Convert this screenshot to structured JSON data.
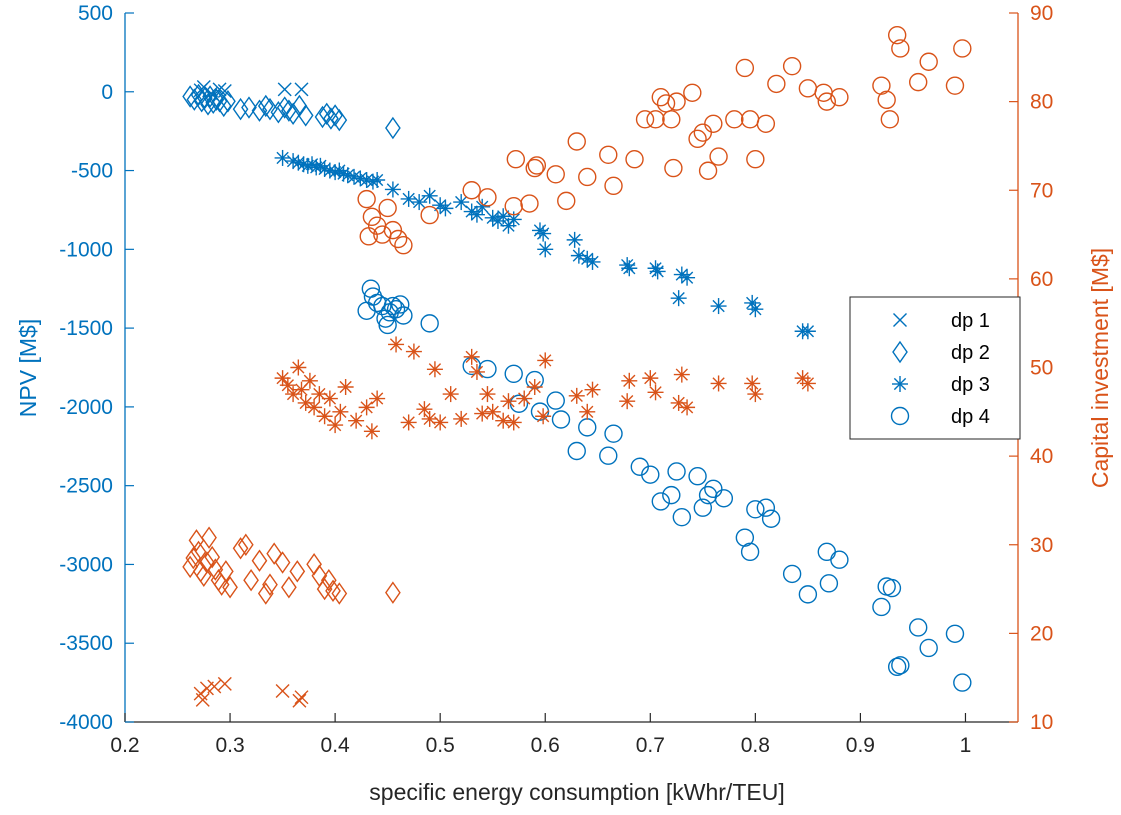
{
  "chart_data": {
    "type": "scatter",
    "title": "",
    "xlabel": "specific energy consumption [kWhr/TEU]",
    "ylabel_left": "NPV [M$]",
    "ylabel_right": "Capital investment [M$]",
    "xlim": [
      0.2,
      1.05
    ],
    "ylim_left": [
      -4000,
      500
    ],
    "ylim_right": [
      10,
      90
    ],
    "xticks": [
      "0.2",
      "0.3",
      "0.4",
      "0.5",
      "0.6",
      "0.7",
      "0.8",
      "0.9",
      "1"
    ],
    "yticks_left": [
      "500",
      "0",
      "-500",
      "-1000",
      "-1500",
      "-2000",
      "-2500",
      "-3000",
      "-3500",
      "-4000"
    ],
    "yticks_right": [
      "90",
      "80",
      "70",
      "60",
      "50",
      "40",
      "30",
      "20",
      "10"
    ],
    "grid": false,
    "legend": {
      "placement": "right",
      "entries": [
        {
          "label": "dp 1",
          "marker": "x"
        },
        {
          "label": "dp 2",
          "marker": "diamond"
        },
        {
          "label": "dp 3",
          "marker": "asterisk"
        },
        {
          "label": "dp 4",
          "marker": "circle"
        }
      ]
    },
    "colors": {
      "left": "#0072bd",
      "right": "#d95319"
    },
    "series": [
      {
        "name": "dp 1",
        "axis": "left",
        "marker": "x",
        "x": [
          0.272,
          0.275,
          0.282,
          0.29,
          0.295,
          0.352,
          0.368
        ],
        "y": [
          10,
          30,
          -10,
          15,
          5,
          15,
          15
        ]
      },
      {
        "name": "dp 2",
        "axis": "left",
        "marker": "diamond",
        "x": [
          0.262,
          0.266,
          0.27,
          0.273,
          0.276,
          0.279,
          0.281,
          0.284,
          0.287,
          0.29,
          0.294,
          0.298,
          0.31,
          0.318,
          0.328,
          0.334,
          0.338,
          0.346,
          0.352,
          0.356,
          0.36,
          0.366,
          0.372,
          0.388,
          0.392,
          0.396,
          0.4,
          0.404,
          0.455
        ],
        "y": [
          -30,
          -50,
          -20,
          -60,
          -40,
          -80,
          -30,
          -70,
          -50,
          -60,
          -90,
          -60,
          -110,
          -100,
          -120,
          -90,
          -110,
          -130,
          -100,
          -120,
          -140,
          -90,
          -150,
          -160,
          -140,
          -170,
          -150,
          -180,
          -230
        ]
      },
      {
        "name": "dp 3",
        "axis": "left",
        "marker": "asterisk",
        "x": [
          0.35,
          0.36,
          0.365,
          0.37,
          0.374,
          0.378,
          0.382,
          0.386,
          0.39,
          0.395,
          0.4,
          0.404,
          0.408,
          0.412,
          0.418,
          0.424,
          0.43,
          0.436,
          0.44,
          0.455,
          0.47,
          0.48,
          0.49,
          0.5,
          0.505,
          0.52,
          0.53,
          0.535,
          0.54,
          0.55,
          0.555,
          0.56,
          0.565,
          0.57,
          0.595,
          0.598,
          0.6,
          0.628,
          0.632,
          0.64,
          0.645,
          0.678,
          0.68,
          0.705,
          0.707,
          0.727,
          0.73,
          0.735,
          0.765,
          0.797,
          0.8,
          0.845,
          0.85
        ],
        "y": [
          -420,
          -440,
          -450,
          -460,
          -470,
          -460,
          -480,
          -470,
          -490,
          -500,
          -510,
          -500,
          -520,
          -530,
          -540,
          -550,
          -560,
          -570,
          -560,
          -620,
          -680,
          -700,
          -660,
          -720,
          -740,
          -700,
          -760,
          -780,
          -730,
          -800,
          -820,
          -790,
          -850,
          -810,
          -880,
          -900,
          -1000,
          -940,
          -1040,
          -1060,
          -1080,
          -1100,
          -1120,
          -1120,
          -1140,
          -1310,
          -1160,
          -1180,
          -1360,
          -1340,
          -1380,
          -1520,
          -1520
        ]
      },
      {
        "name": "dp 4",
        "axis": "left",
        "marker": "circle",
        "x": [
          0.43,
          0.434,
          0.436,
          0.44,
          0.445,
          0.448,
          0.45,
          0.452,
          0.455,
          0.458,
          0.462,
          0.465,
          0.49,
          0.53,
          0.545,
          0.57,
          0.575,
          0.59,
          0.595,
          0.61,
          0.615,
          0.63,
          0.64,
          0.66,
          0.665,
          0.69,
          0.7,
          0.71,
          0.72,
          0.725,
          0.73,
          0.745,
          0.75,
          0.755,
          0.76,
          0.77,
          0.79,
          0.795,
          0.8,
          0.81,
          0.815,
          0.835,
          0.85,
          0.868,
          0.87,
          0.88,
          0.92,
          0.925,
          0.93,
          0.935,
          0.938,
          0.955,
          0.965,
          0.99,
          0.997
        ],
        "y": [
          -1390,
          -1250,
          -1300,
          -1340,
          -1360,
          -1440,
          -1480,
          -1400,
          -1360,
          -1380,
          -1350,
          -1420,
          -1470,
          -1740,
          -1760,
          -1790,
          -1980,
          -1830,
          -2030,
          -1960,
          -2080,
          -2280,
          -2130,
          -2310,
          -2170,
          -2380,
          -2430,
          -2600,
          -2560,
          -2410,
          -2700,
          -2440,
          -2640,
          -2560,
          -2520,
          -2580,
          -2830,
          -2920,
          -2650,
          -2640,
          -2710,
          -3060,
          -3190,
          -2920,
          -3120,
          -2970,
          -3270,
          -3140,
          -3150,
          -3650,
          -3640,
          -3400,
          -3530,
          -3440,
          -3750
        ]
      },
      {
        "name": "dp 1",
        "axis": "right",
        "marker": "x",
        "x": [
          0.272,
          0.274,
          0.278,
          0.285,
          0.295,
          0.35,
          0.366,
          0.368
        ],
        "y": [
          13.2,
          12.5,
          13.8,
          14.0,
          14.3,
          13.5,
          12.4,
          12.8
        ]
      },
      {
        "name": "dp 2",
        "axis": "right",
        "marker": "diamond",
        "x": [
          0.262,
          0.265,
          0.268,
          0.27,
          0.272,
          0.275,
          0.278,
          0.28,
          0.283,
          0.286,
          0.289,
          0.292,
          0.296,
          0.3,
          0.31,
          0.315,
          0.32,
          0.328,
          0.334,
          0.338,
          0.342,
          0.35,
          0.356,
          0.364,
          0.38,
          0.385,
          0.39,
          0.394,
          0.398,
          0.404,
          0.455
        ],
        "y": [
          27.5,
          28.5,
          30.5,
          29.2,
          27.0,
          26.5,
          28.0,
          30.8,
          28.6,
          27.2,
          26.0,
          25.5,
          27.0,
          25.2,
          29.6,
          30.0,
          26.0,
          28.2,
          24.5,
          25.5,
          29.0,
          28.0,
          25.2,
          27.0,
          27.8,
          26.5,
          25.0,
          26.0,
          24.8,
          24.5,
          24.6
        ]
      },
      {
        "name": "dp 3",
        "axis": "right",
        "marker": "asterisk",
        "x": [
          0.35,
          0.355,
          0.36,
          0.365,
          0.368,
          0.372,
          0.376,
          0.38,
          0.385,
          0.39,
          0.395,
          0.4,
          0.405,
          0.41,
          0.42,
          0.43,
          0.435,
          0.44,
          0.458,
          0.47,
          0.475,
          0.485,
          0.49,
          0.495,
          0.5,
          0.51,
          0.52,
          0.53,
          0.535,
          0.54,
          0.545,
          0.55,
          0.56,
          0.565,
          0.57,
          0.58,
          0.59,
          0.598,
          0.6,
          0.63,
          0.64,
          0.645,
          0.678,
          0.68,
          0.7,
          0.705,
          0.727,
          0.73,
          0.735,
          0.765,
          0.797,
          0.8,
          0.845,
          0.85
        ],
        "y": [
          48.8,
          48.0,
          47.0,
          50.0,
          47.5,
          46.0,
          48.5,
          45.5,
          47.0,
          44.5,
          46.5,
          43.5,
          45.0,
          47.8,
          44.0,
          45.5,
          42.8,
          46.5,
          52.6,
          43.8,
          51.8,
          45.3,
          44.2,
          49.8,
          43.8,
          47.0,
          44.2,
          51.2,
          49.5,
          44.8,
          47.0,
          45.0,
          44.0,
          46.2,
          43.8,
          46.5,
          47.8,
          44.5,
          50.8,
          46.8,
          45.0,
          47.5,
          46.2,
          48.5,
          48.8,
          47.2,
          46.0,
          49.2,
          45.5,
          48.2,
          48.2,
          47.0,
          48.8,
          48.2
        ]
      },
      {
        "name": "dp 4",
        "axis": "right",
        "marker": "circle",
        "x": [
          0.43,
          0.432,
          0.435,
          0.44,
          0.445,
          0.45,
          0.455,
          0.46,
          0.465,
          0.49,
          0.53,
          0.545,
          0.57,
          0.572,
          0.585,
          0.59,
          0.592,
          0.61,
          0.62,
          0.63,
          0.64,
          0.66,
          0.665,
          0.685,
          0.695,
          0.705,
          0.71,
          0.715,
          0.72,
          0.722,
          0.725,
          0.74,
          0.745,
          0.75,
          0.755,
          0.76,
          0.765,
          0.78,
          0.79,
          0.795,
          0.8,
          0.81,
          0.82,
          0.835,
          0.85,
          0.865,
          0.868,
          0.88,
          0.92,
          0.925,
          0.928,
          0.935,
          0.938,
          0.955,
          0.965,
          0.99,
          0.997
        ],
        "y": [
          69.0,
          64.8,
          67.0,
          66.0,
          65.0,
          68.0,
          65.5,
          64.5,
          63.8,
          67.2,
          70.0,
          69.2,
          68.2,
          73.5,
          68.5,
          72.5,
          72.8,
          71.8,
          68.8,
          75.5,
          71.5,
          74.0,
          70.5,
          73.5,
          78.0,
          78.0,
          80.5,
          79.8,
          78.0,
          72.5,
          80.0,
          81.0,
          75.8,
          76.5,
          72.2,
          77.5,
          73.8,
          78.0,
          83.8,
          78.0,
          73.5,
          77.5,
          82.0,
          84.0,
          81.5,
          81.0,
          80.0,
          80.5,
          81.8,
          80.2,
          78.0,
          87.5,
          86.0,
          82.2,
          84.5,
          81.8,
          86.0
        ]
      }
    ]
  }
}
